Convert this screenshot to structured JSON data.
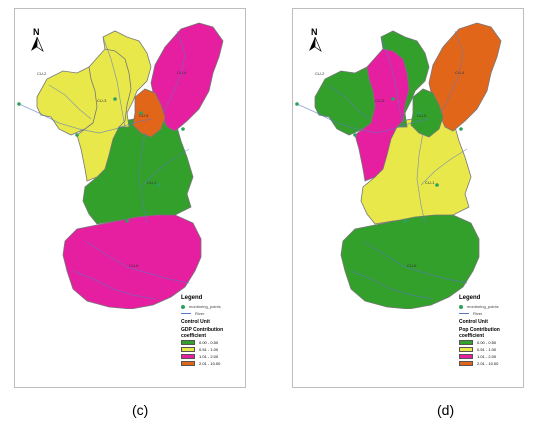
{
  "panels": [
    {
      "caption": "(c)",
      "legend": {
        "title": "Legend",
        "monitoring": "monitoring_points",
        "river": "River",
        "unit_title": "Control Unit",
        "coeff_title": "GDP Contribution coefficient",
        "classes": [
          "0.00 - 0.50",
          "0.51 - 1.00",
          "1.01 - 2.00",
          "2.01 - 10.00"
        ]
      },
      "zone_labels": [
        "CU-1",
        "CU-2",
        "CU-3",
        "CU-4",
        "CU-5",
        "CU-6"
      ],
      "zone_classes": [
        0,
        1,
        1,
        2,
        3,
        2
      ]
    },
    {
      "caption": "(d)",
      "legend": {
        "title": "Legend",
        "monitoring": "monitoring_points",
        "river": "River",
        "unit_title": "Control Unit",
        "coeff_title": "Pop Contribution coefficient",
        "classes": [
          "0.00 - 0.50",
          "0.51 - 1.00",
          "1.01 - 2.00",
          "2.01 - 10.00"
        ]
      },
      "zone_labels": [
        "CU-1",
        "CU-2",
        "CU-3",
        "CU-4",
        "CU-5",
        "CU-6"
      ],
      "zone_classes": [
        1,
        0,
        2,
        3,
        0,
        0
      ]
    }
  ],
  "class_colors": [
    "#33a02c",
    "#e8e84a",
    "#e61ea0",
    "#e2661a"
  ],
  "monitoring_color": "#2ca25f",
  "river_color": "#5a78c8",
  "north_arrow_letter": "N"
}
